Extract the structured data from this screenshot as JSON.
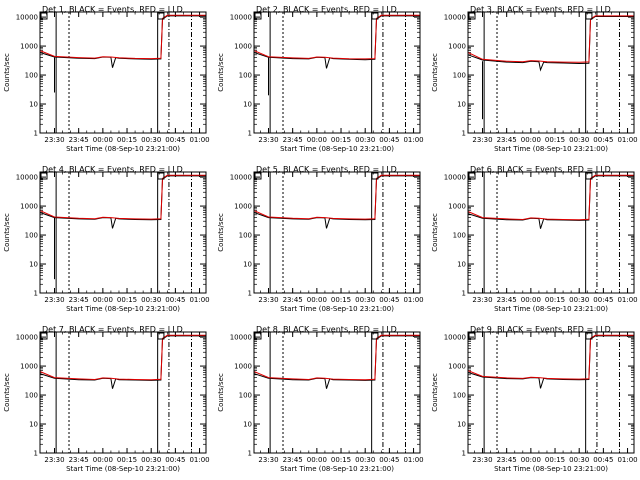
{
  "figure": {
    "x_tick_labels": [
      "23:30",
      "23:45",
      "00:00",
      "00:15",
      "00:30",
      "00:45",
      "01:00"
    ],
    "y_tick_labels": [
      "1",
      "10",
      "100",
      "1000",
      "10000"
    ],
    "colors": {
      "events": "#000000",
      "lld": "#e00000",
      "background": "#ffffff",
      "axes": "#000000"
    }
  },
  "chart_data": [
    {
      "type": "line",
      "title": "Det 1, BLACK = Events, RED = LLD",
      "xlabel": "Start Time (08-Sep-10 23:21:00)",
      "ylabel": "Counts/sec",
      "x_time_range": [
        "23:21",
        "01:04"
      ],
      "ylim": [
        1,
        15000
      ],
      "y_scale": "log",
      "grid": false,
      "series": [
        {
          "name": "Events",
          "color": "#000000",
          "x": [
            "23:21",
            "23:30",
            "23:45",
            "23:55",
            "00:00",
            "00:05",
            "00:06",
            "00:08",
            "00:10",
            "00:20",
            "00:30",
            "00:36",
            "00:37",
            "00:40",
            "01:04"
          ],
          "y": [
            600,
            420,
            380,
            370,
            420,
            410,
            180,
            400,
            380,
            360,
            350,
            360,
            8500,
            11000,
            11000
          ]
        },
        {
          "name": "LLD",
          "color": "#e00000",
          "x": [
            "23:21",
            "23:30",
            "23:45",
            "23:55",
            "00:00",
            "00:05",
            "00:10",
            "00:20",
            "00:30",
            "00:36",
            "00:37",
            "00:40",
            "01:04"
          ],
          "y": [
            700,
            440,
            400,
            385,
            430,
            420,
            395,
            375,
            370,
            380,
            9000,
            11500,
            11500
          ]
        }
      ],
      "dropouts": [
        {
          "x": "23:30",
          "y": [
            25,
            400
          ]
        }
      ],
      "vertical_markers": [
        {
          "x": "23:31",
          "style": "solid"
        },
        {
          "x": "23:39",
          "style": "dashed"
        },
        {
          "x": "00:34",
          "style": "solid"
        },
        {
          "x": "00:41",
          "style": "dashdot"
        },
        {
          "x": "00:55",
          "style": "dashdot"
        }
      ]
    },
    {
      "type": "line",
      "title": "Det 2, BLACK = Events, RED = LLD",
      "xlabel": "Start Time (08-Sep-10 23:21:00)",
      "ylabel": "Counts/sec",
      "x_time_range": [
        "23:21",
        "01:04"
      ],
      "ylim": [
        1,
        15000
      ],
      "y_scale": "log",
      "grid": false,
      "series": [
        {
          "name": "Events",
          "color": "#000000",
          "x": [
            "23:21",
            "23:30",
            "23:45",
            "23:55",
            "00:00",
            "00:05",
            "00:06",
            "00:08",
            "00:10",
            "00:20",
            "00:30",
            "00:36",
            "00:37",
            "00:40",
            "01:04"
          ],
          "y": [
            600,
            410,
            370,
            360,
            410,
            400,
            170,
            390,
            370,
            350,
            340,
            350,
            8500,
            11000,
            11000
          ]
        },
        {
          "name": "LLD",
          "color": "#e00000",
          "x": [
            "23:21",
            "23:30",
            "23:45",
            "23:55",
            "00:00",
            "00:05",
            "00:10",
            "00:20",
            "00:30",
            "00:36",
            "00:37",
            "00:40",
            "01:04"
          ],
          "y": [
            700,
            430,
            390,
            375,
            420,
            410,
            385,
            365,
            360,
            370,
            9000,
            11500,
            11500
          ]
        }
      ],
      "dropouts": [
        {
          "x": "23:30",
          "y": [
            20,
            400
          ]
        }
      ],
      "vertical_markers": [
        {
          "x": "23:31",
          "style": "solid"
        },
        {
          "x": "23:39",
          "style": "dashed"
        },
        {
          "x": "00:34",
          "style": "solid"
        },
        {
          "x": "00:41",
          "style": "dashdot"
        },
        {
          "x": "00:55",
          "style": "dashdot"
        }
      ]
    },
    {
      "type": "line",
      "title": "Det 3, BLACK = Events, RED = LLD",
      "xlabel": "Start Time (08-Sep-10 23:21:00)",
      "ylabel": "Counts/sec",
      "x_time_range": [
        "23:21",
        "01:04"
      ],
      "ylim": [
        1,
        15000
      ],
      "y_scale": "log",
      "grid": false,
      "series": [
        {
          "name": "Events",
          "color": "#000000",
          "x": [
            "23:21",
            "23:30",
            "23:45",
            "23:55",
            "00:00",
            "00:05",
            "00:06",
            "00:08",
            "00:10",
            "00:20",
            "00:30",
            "00:36",
            "00:37",
            "00:40",
            "01:04"
          ],
          "y": [
            500,
            330,
            280,
            270,
            300,
            290,
            150,
            280,
            270,
            260,
            250,
            255,
            8000,
            10500,
            10500
          ]
        },
        {
          "name": "LLD",
          "color": "#e00000",
          "x": [
            "23:21",
            "23:30",
            "23:45",
            "23:55",
            "00:00",
            "00:05",
            "00:10",
            "00:20",
            "00:30",
            "00:36",
            "00:37",
            "00:40",
            "01:04"
          ],
          "y": [
            600,
            350,
            300,
            290,
            315,
            305,
            290,
            280,
            275,
            285,
            8500,
            11000,
            11000
          ]
        }
      ],
      "dropouts": [
        {
          "x": "23:30",
          "y": [
            3,
            300
          ]
        }
      ],
      "vertical_markers": [
        {
          "x": "23:31",
          "style": "solid"
        },
        {
          "x": "23:39",
          "style": "dashed"
        },
        {
          "x": "00:34",
          "style": "solid"
        },
        {
          "x": "00:41",
          "style": "dashdot"
        },
        {
          "x": "00:55",
          "style": "dashdot"
        }
      ]
    },
    {
      "type": "line",
      "title": "Det 4, BLACK = Events, RED = LLD",
      "xlabel": "Start Time (08-Sep-10 23:21:00)",
      "ylabel": "Counts/sec",
      "x_time_range": [
        "23:21",
        "01:04"
      ],
      "ylim": [
        1,
        15000
      ],
      "y_scale": "log",
      "grid": false,
      "series": [
        {
          "name": "Events",
          "color": "#000000",
          "x": [
            "23:21",
            "23:30",
            "23:45",
            "23:55",
            "00:00",
            "00:05",
            "00:06",
            "00:08",
            "00:10",
            "00:20",
            "00:30",
            "00:36",
            "00:37",
            "00:40",
            "01:04"
          ],
          "y": [
            600,
            400,
            360,
            350,
            400,
            390,
            170,
            380,
            360,
            345,
            335,
            345,
            8500,
            11000,
            11000
          ]
        },
        {
          "name": "LLD",
          "color": "#e00000",
          "x": [
            "23:21",
            "23:30",
            "23:45",
            "23:55",
            "00:00",
            "00:05",
            "00:10",
            "00:20",
            "00:30",
            "00:36",
            "00:37",
            "00:40",
            "01:04"
          ],
          "y": [
            700,
            420,
            380,
            365,
            410,
            400,
            375,
            360,
            355,
            365,
            9000,
            11500,
            11500
          ]
        }
      ],
      "dropouts": [
        {
          "x": "23:30",
          "y": [
            3,
            400
          ]
        }
      ],
      "vertical_markers": [
        {
          "x": "23:31",
          "style": "solid"
        },
        {
          "x": "23:39",
          "style": "dashed"
        },
        {
          "x": "00:34",
          "style": "solid"
        },
        {
          "x": "00:41",
          "style": "dashdot"
        },
        {
          "x": "00:55",
          "style": "dashdot"
        }
      ]
    },
    {
      "type": "line",
      "title": "Det 5, BLACK = Events, RED = LLD",
      "xlabel": "Start Time (08-Sep-10 23:21:00)",
      "ylabel": "Counts/sec",
      "x_time_range": [
        "23:21",
        "01:04"
      ],
      "ylim": [
        1,
        15000
      ],
      "y_scale": "log",
      "grid": false,
      "series": [
        {
          "name": "Events",
          "color": "#000000",
          "x": [
            "23:21",
            "23:30",
            "23:45",
            "23:55",
            "00:00",
            "00:05",
            "00:06",
            "00:08",
            "00:10",
            "00:20",
            "00:30",
            "00:36",
            "00:37",
            "00:40",
            "01:04"
          ],
          "y": [
            600,
            400,
            360,
            350,
            400,
            390,
            170,
            380,
            360,
            345,
            335,
            345,
            8500,
            11000,
            11000
          ]
        },
        {
          "name": "LLD",
          "color": "#e00000",
          "x": [
            "23:21",
            "23:30",
            "23:45",
            "23:55",
            "00:00",
            "00:05",
            "00:10",
            "00:20",
            "00:30",
            "00:36",
            "00:37",
            "00:40",
            "01:04"
          ],
          "y": [
            700,
            420,
            380,
            365,
            410,
            400,
            375,
            360,
            355,
            365,
            9000,
            11500,
            11500
          ]
        }
      ],
      "dropouts": [],
      "vertical_markers": [
        {
          "x": "23:31",
          "style": "solid"
        },
        {
          "x": "23:39",
          "style": "dashed"
        },
        {
          "x": "00:34",
          "style": "solid"
        },
        {
          "x": "00:41",
          "style": "dashdot"
        },
        {
          "x": "00:55",
          "style": "dashdot"
        }
      ]
    },
    {
      "type": "line",
      "title": "Det 6, BLACK = Events, RED = LLD",
      "xlabel": "Start Time (08-Sep-10 23:21:00)",
      "ylabel": "Counts/sec",
      "x_time_range": [
        "23:21",
        "01:04"
      ],
      "ylim": [
        1,
        15000
      ],
      "y_scale": "log",
      "grid": false,
      "series": [
        {
          "name": "Events",
          "color": "#000000",
          "x": [
            "23:21",
            "23:30",
            "23:45",
            "23:55",
            "00:00",
            "00:05",
            "00:06",
            "00:08",
            "00:10",
            "00:20",
            "00:30",
            "00:36",
            "00:37",
            "00:40",
            "01:04"
          ],
          "y": [
            550,
            380,
            340,
            330,
            380,
            370,
            165,
            360,
            340,
            330,
            320,
            330,
            8500,
            11000,
            11000
          ]
        },
        {
          "name": "LLD",
          "color": "#e00000",
          "x": [
            "23:21",
            "23:30",
            "23:45",
            "23:55",
            "00:00",
            "00:05",
            "00:10",
            "00:20",
            "00:30",
            "00:36",
            "00:37",
            "00:40",
            "01:04"
          ],
          "y": [
            650,
            400,
            360,
            345,
            390,
            380,
            355,
            345,
            340,
            350,
            9000,
            11500,
            11500
          ]
        }
      ],
      "dropouts": [],
      "vertical_markers": [
        {
          "x": "23:31",
          "style": "solid"
        },
        {
          "x": "23:39",
          "style": "dashed"
        },
        {
          "x": "00:34",
          "style": "solid"
        },
        {
          "x": "00:41",
          "style": "dashdot"
        },
        {
          "x": "00:55",
          "style": "dashdot"
        }
      ]
    },
    {
      "type": "line",
      "title": "Det 7, BLACK = Events, RED = LLD",
      "xlabel": "Start Time (08-Sep-10 23:21:00)",
      "ylabel": "Counts/sec",
      "x_time_range": [
        "23:21",
        "01:04"
      ],
      "ylim": [
        1,
        15000
      ],
      "y_scale": "log",
      "grid": false,
      "series": [
        {
          "name": "Events",
          "color": "#000000",
          "x": [
            "23:21",
            "23:30",
            "23:45",
            "23:55",
            "00:00",
            "00:05",
            "00:06",
            "00:08",
            "00:10",
            "00:20",
            "00:30",
            "00:36",
            "00:37",
            "00:40",
            "01:04"
          ],
          "y": [
            550,
            380,
            340,
            330,
            380,
            370,
            165,
            360,
            340,
            330,
            320,
            330,
            8500,
            11000,
            11000
          ]
        },
        {
          "name": "LLD",
          "color": "#e00000",
          "x": [
            "23:21",
            "23:30",
            "23:45",
            "23:55",
            "00:00",
            "00:05",
            "00:10",
            "00:20",
            "00:30",
            "00:36",
            "00:37",
            "00:40",
            "01:04"
          ],
          "y": [
            650,
            400,
            360,
            345,
            390,
            380,
            355,
            345,
            340,
            350,
            9000,
            11500,
            11500
          ]
        }
      ],
      "dropouts": [],
      "vertical_markers": [
        {
          "x": "23:31",
          "style": "solid"
        },
        {
          "x": "23:39",
          "style": "dashed"
        },
        {
          "x": "00:34",
          "style": "solid"
        },
        {
          "x": "00:41",
          "style": "dashdot"
        },
        {
          "x": "00:55",
          "style": "dashdot"
        }
      ]
    },
    {
      "type": "line",
      "title": "Det 8, BLACK = Events, RED = LLD",
      "xlabel": "Start Time (08-Sep-10 23:21:00)",
      "ylabel": "Counts/sec",
      "x_time_range": [
        "23:21",
        "01:04"
      ],
      "ylim": [
        1,
        15000
      ],
      "y_scale": "log",
      "grid": false,
      "series": [
        {
          "name": "Events",
          "color": "#000000",
          "x": [
            "23:21",
            "23:30",
            "23:45",
            "23:55",
            "00:00",
            "00:05",
            "00:06",
            "00:08",
            "00:10",
            "00:20",
            "00:30",
            "00:36",
            "00:37",
            "00:40",
            "01:04"
          ],
          "y": [
            550,
            380,
            340,
            330,
            380,
            370,
            165,
            360,
            340,
            330,
            320,
            330,
            8500,
            11000,
            11000
          ]
        },
        {
          "name": "LLD",
          "color": "#e00000",
          "x": [
            "23:21",
            "23:30",
            "23:45",
            "23:55",
            "00:00",
            "00:05",
            "00:10",
            "00:20",
            "00:30",
            "00:36",
            "00:37",
            "00:40",
            "01:04"
          ],
          "y": [
            650,
            400,
            360,
            345,
            390,
            380,
            355,
            345,
            340,
            350,
            9000,
            11500,
            11500
          ]
        }
      ],
      "dropouts": [],
      "vertical_markers": [
        {
          "x": "23:31",
          "style": "solid"
        },
        {
          "x": "23:39",
          "style": "dashed"
        },
        {
          "x": "00:34",
          "style": "solid"
        },
        {
          "x": "00:41",
          "style": "dashdot"
        },
        {
          "x": "00:55",
          "style": "dashdot"
        }
      ]
    },
    {
      "type": "line",
      "title": "Det 9, BLACK = Events, RED = LLD",
      "xlabel": "Start Time (08-Sep-10 23:21:00)",
      "ylabel": "Counts/sec",
      "x_time_range": [
        "23:21",
        "01:04"
      ],
      "ylim": [
        1,
        15000
      ],
      "y_scale": "log",
      "grid": false,
      "series": [
        {
          "name": "Events",
          "color": "#000000",
          "x": [
            "23:21",
            "23:30",
            "23:45",
            "23:55",
            "00:00",
            "00:05",
            "00:06",
            "00:08",
            "00:10",
            "00:20",
            "00:30",
            "00:36",
            "00:37",
            "00:40",
            "01:04"
          ],
          "y": [
            600,
            420,
            370,
            360,
            400,
            390,
            170,
            380,
            360,
            345,
            335,
            345,
            8500,
            11000,
            11000
          ]
        },
        {
          "name": "LLD",
          "color": "#e00000",
          "x": [
            "23:21",
            "23:30",
            "23:45",
            "23:55",
            "00:00",
            "00:05",
            "00:10",
            "00:20",
            "00:30",
            "00:36",
            "00:37",
            "00:40",
            "01:04"
          ],
          "y": [
            700,
            440,
            390,
            375,
            410,
            400,
            375,
            360,
            355,
            365,
            9000,
            11500,
            11500
          ]
        }
      ],
      "dropouts": [],
      "vertical_markers": [
        {
          "x": "23:31",
          "style": "solid"
        },
        {
          "x": "23:39",
          "style": "dashed"
        },
        {
          "x": "00:34",
          "style": "solid"
        },
        {
          "x": "00:41",
          "style": "dashdot"
        },
        {
          "x": "00:55",
          "style": "dashdot"
        }
      ]
    }
  ]
}
